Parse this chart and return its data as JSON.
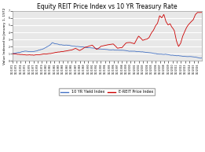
{
  "title": "Equity REIT Price Index vs 10 YR Treasury Rate",
  "ylabel": "Value Indexed to January 1, 1972",
  "ylim": [
    0,
    7
  ],
  "yticks": [
    0,
    1,
    2,
    3,
    4,
    5,
    6,
    7
  ],
  "line1_label": "10 YR Yield Index",
  "line2_label": "E-REIT Price Index",
  "line1_color": "#4472C4",
  "line2_color": "#CC0000",
  "bg_color": "#FFFFFF",
  "plot_bg_color": "#E8E8E8",
  "grid_color": "#FFFFFF",
  "title_fontsize": 5.5,
  "ylabel_fontsize": 3.2,
  "tick_fontsize": 2.2,
  "legend_fontsize": 3.5,
  "yield_waypoints_x": [
    0,
    1,
    3,
    5,
    7,
    8,
    9,
    9.5,
    10,
    11,
    12,
    14,
    16,
    18,
    20,
    22,
    24,
    26,
    28,
    30,
    32,
    34,
    36,
    38,
    40,
    42,
    44
  ],
  "yield_waypoints_y": [
    1.0,
    1.1,
    1.3,
    1.2,
    1.5,
    1.8,
    2.2,
    2.5,
    2.4,
    2.2,
    2.1,
    2.0,
    1.85,
    1.75,
    1.65,
    1.55,
    1.45,
    1.35,
    1.2,
    1.1,
    1.0,
    0.85,
    0.75,
    0.65,
    0.55,
    0.45,
    0.38
  ],
  "reit_waypoints_x": [
    0,
    2,
    4,
    5,
    6,
    7,
    8,
    9,
    10,
    11,
    12,
    14,
    15,
    16,
    17,
    18,
    19,
    20,
    21,
    22,
    23,
    24,
    25,
    26,
    27,
    28,
    29,
    30,
    31,
    32,
    32.5,
    33,
    33.5,
    34,
    34.5,
    35,
    35.5,
    36,
    36.5,
    37,
    37.5,
    37.8,
    38.2,
    38.5,
    39,
    39.5,
    40,
    40.5,
    41,
    41.5,
    42,
    42.5,
    43,
    43.5,
    44
  ],
  "reit_waypoints_y": [
    1.0,
    0.9,
    0.85,
    0.8,
    0.85,
    0.9,
    1.0,
    1.1,
    1.2,
    1.3,
    1.35,
    1.5,
    1.7,
    1.4,
    1.8,
    2.0,
    2.2,
    1.6,
    2.0,
    2.2,
    2.3,
    2.4,
    1.8,
    1.8,
    2.4,
    2.5,
    2.3,
    3.4,
    2.8,
    3.0,
    3.2,
    3.8,
    4.2,
    4.8,
    5.2,
    6.3,
    6.0,
    6.5,
    5.5,
    5.0,
    5.2,
    4.8,
    4.5,
    4.2,
    2.8,
    2.0,
    2.5,
    3.5,
    4.2,
    4.8,
    5.2,
    5.5,
    5.8,
    6.5,
    6.8
  ],
  "start_year": 1972,
  "end_year": 2016,
  "n_months_per_year": 12
}
